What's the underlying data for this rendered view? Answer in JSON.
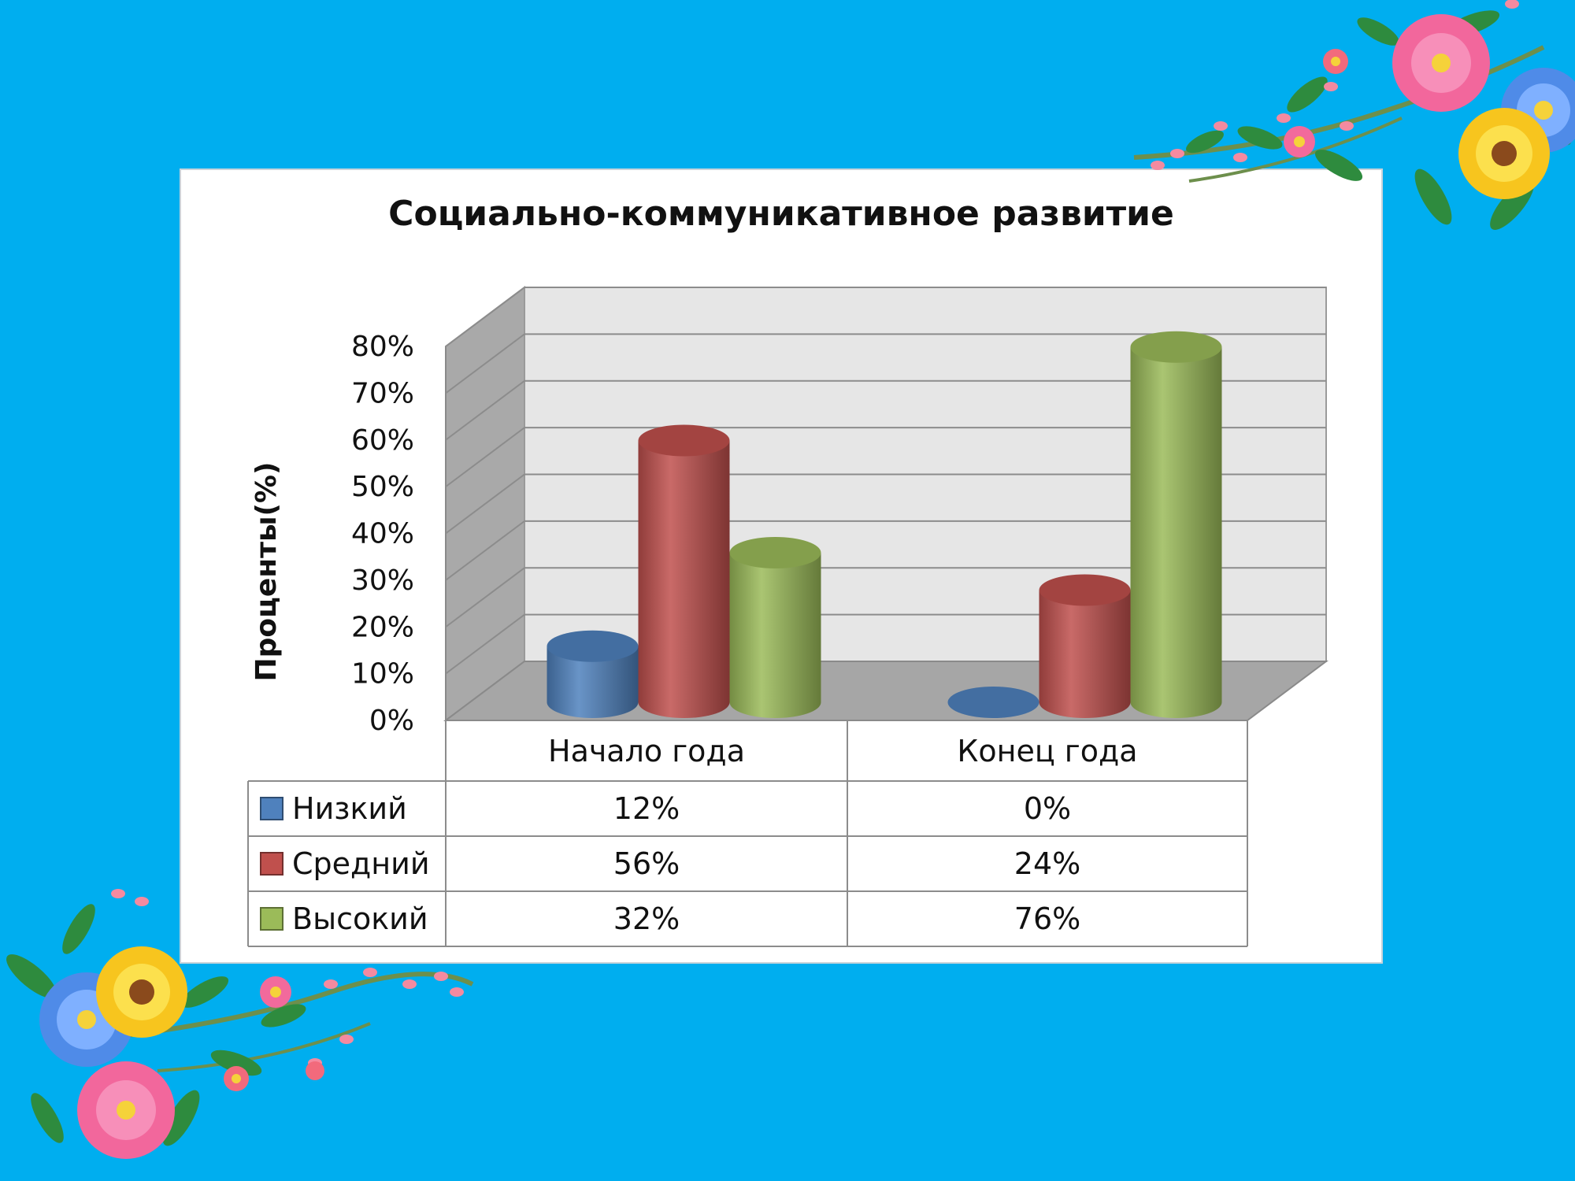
{
  "slide": {
    "background": "#00AEEF"
  },
  "chart_data": {
    "type": "bar",
    "title": "Социально-коммуникативное развитие",
    "ylabel": "Проценты(%)",
    "xlabel": "",
    "categories": [
      "Начало года",
      "Конец года"
    ],
    "series": [
      {
        "name": "Низкий",
        "values": [
          12,
          0
        ],
        "value_labels": [
          "12%",
          "0%"
        ],
        "color": "#4F81BD"
      },
      {
        "name": "Средний",
        "values": [
          56,
          24
        ],
        "value_labels": [
          "56%",
          "24%"
        ],
        "color": "#C0504D"
      },
      {
        "name": "Высокий",
        "values": [
          32,
          76
        ],
        "value_labels": [
          "32%",
          "76%"
        ],
        "color": "#9BBB59"
      }
    ],
    "yticks": [
      "0%",
      "10%",
      "20%",
      "30%",
      "40%",
      "50%",
      "60%",
      "70%",
      "80%"
    ],
    "ylim": [
      0,
      80
    ],
    "grid": true,
    "style": "3d-cylinder",
    "legend": "data-table"
  },
  "decor": {
    "top_right": "flower-bouquet-icon",
    "bottom_left": "flower-bouquet-icon"
  }
}
